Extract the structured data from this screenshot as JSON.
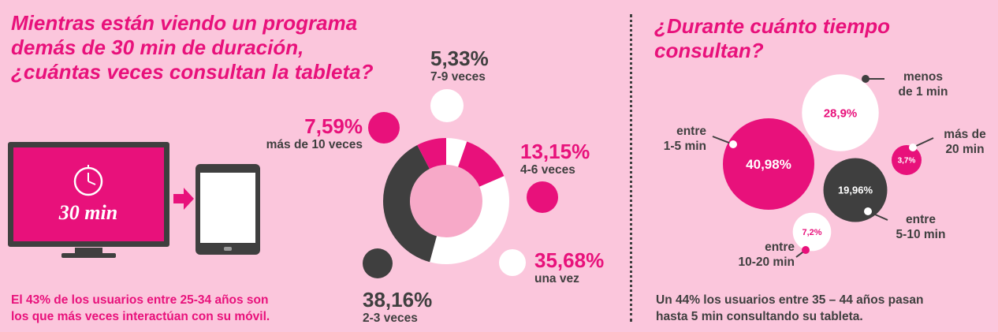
{
  "colors": {
    "magenta": "#e8117b",
    "dark": "#3f3f3f",
    "white": "#ffffff",
    "background": "#fbc6dc",
    "center": "#f7a9c8"
  },
  "left": {
    "title": "Mientras están viendo un programa\ndemás de 30 min de duración,\n¿cuántas veces consultan la tableta?",
    "tv_label": "30 min",
    "footnote": "El 43% de los usuarios entre 25-34 años son\nlos que más veces interactúan con su móvil."
  },
  "right": {
    "title": "¿Durante cuánto tiempo\nconsultan?",
    "footnote": "Un 44% los usuarios entre 35 – 44 años pasan\nhasta 5 min consultando su tableta."
  },
  "icons": [
    "tv-icon",
    "clock-icon",
    "arrow-right-icon",
    "tablet-icon"
  ],
  "chart_data": [
    {
      "type": "pie",
      "variant": "donut",
      "slices": [
        {
          "value_label": "5,33%",
          "caption": "7-9 veces",
          "value": 5.33,
          "color": "#ffffff"
        },
        {
          "value_label": "13,15%",
          "caption": "4-6 veces",
          "value": 13.15,
          "color": "#e8117b"
        },
        {
          "value_label": "35,68%",
          "caption": "una vez",
          "value": 35.68,
          "color": "#ffffff"
        },
        {
          "value_label": "38,16%",
          "caption": "2-3 veces",
          "value": 38.16,
          "color": "#3f3f3f"
        },
        {
          "value_label": "7,59%",
          "caption": "más de 10 veces",
          "value": 7.59,
          "color": "#e8117b"
        }
      ]
    },
    {
      "type": "scatter",
      "variant": "bubble",
      "points": [
        {
          "value_label": "40,98%",
          "caption": "entre\n1-5 min",
          "value": 40.98,
          "color": "#e8117b"
        },
        {
          "value_label": "28,9%",
          "caption": "menos\nde 1 min",
          "value": 28.9,
          "color": "#ffffff"
        },
        {
          "value_label": "19,96%",
          "caption": "entre\n5-10 min",
          "value": 19.96,
          "color": "#3f3f3f"
        },
        {
          "value_label": "7,2%",
          "caption": "entre\n10-20 min",
          "value": 7.2,
          "color": "#ffffff"
        },
        {
          "value_label": "3,7%",
          "caption": "más de\n20 min",
          "value": 3.7,
          "color": "#e8117b"
        }
      ]
    }
  ]
}
